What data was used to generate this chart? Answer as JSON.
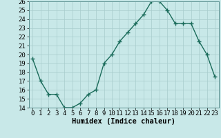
{
  "x": [
    0,
    1,
    2,
    3,
    4,
    5,
    6,
    7,
    8,
    9,
    10,
    11,
    12,
    13,
    14,
    15,
    16,
    17,
    18,
    19,
    20,
    21,
    22,
    23
  ],
  "y": [
    19.5,
    17.0,
    15.5,
    15.5,
    14.0,
    14.0,
    14.5,
    15.5,
    16.0,
    19.0,
    20.0,
    21.5,
    22.5,
    23.5,
    24.5,
    26.0,
    26.0,
    25.0,
    23.5,
    23.5,
    23.5,
    21.5,
    20.0,
    17.5
  ],
  "xlabel": "Humidex (Indice chaleur)",
  "ylim": [
    14,
    26
  ],
  "xlim": [
    -0.5,
    23.5
  ],
  "yticks": [
    14,
    15,
    16,
    17,
    18,
    19,
    20,
    21,
    22,
    23,
    24,
    25,
    26
  ],
  "xticks": [
    0,
    1,
    2,
    3,
    4,
    5,
    6,
    7,
    8,
    9,
    10,
    11,
    12,
    13,
    14,
    15,
    16,
    17,
    18,
    19,
    20,
    21,
    22,
    23
  ],
  "line_color": "#1a6b5a",
  "marker": "+",
  "bg_color": "#c8e8e8",
  "grid_color": "#a8cccc",
  "tick_fontsize": 6.5,
  "xlabel_fontsize": 7.5,
  "figsize": [
    3.2,
    2.0
  ],
  "dpi": 100
}
